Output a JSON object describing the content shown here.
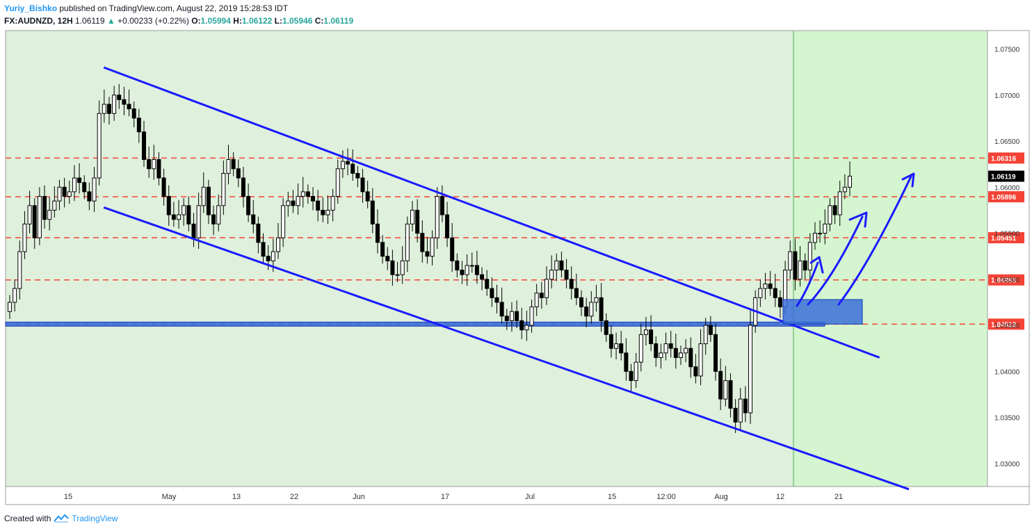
{
  "header": {
    "author": "Yuriy_Bishko",
    "published_text": "published on TradingView.com, August 22, 2019 15:28:53 IDT",
    "symbol": "FX:AUDNZD, 12H",
    "last": "1.06119",
    "change": "+0.00233 (+0.22%)",
    "o_label": "O:",
    "o_value": "1.05994",
    "h_label": "H:",
    "h_value": "1.06122",
    "l_label": "L:",
    "l_value": "1.05946",
    "c_label": "C:",
    "c_value": "1.06119"
  },
  "footer": {
    "created_with": "Created with",
    "brand": "TradingView"
  },
  "colors": {
    "bg_zone": "#dff0dc",
    "future_zone": "#d4f5cf",
    "channel": "#1a1aff",
    "level": "#f44336",
    "box": "#3a6fd8",
    "up": "#ffffff",
    "down": "#000000"
  },
  "chart_data": {
    "type": "candlestick",
    "ylim": [
      1.0275,
      1.077
    ],
    "y_ticks": [
      "1.07500",
      "1.07000",
      "1.06500",
      "1.06000",
      "1.05500",
      "1.05000",
      "1.04500",
      "1.04000",
      "1.03500",
      "1.03000"
    ],
    "y_tick_values": [
      1.075,
      1.07,
      1.065,
      1.06,
      1.055,
      1.05,
      1.045,
      1.04,
      1.035,
      1.03
    ],
    "x_ticks": [
      "15",
      "May",
      "13",
      "22",
      "Jun",
      "17",
      "Jul",
      "15",
      "12:00",
      "Aug",
      "12",
      "21"
    ],
    "levels": [
      {
        "label": "1.06316",
        "value": 1.06316
      },
      {
        "label": "1.05896",
        "value": 1.05896
      },
      {
        "label": "1.05451",
        "value": 1.05451
      },
      {
        "label": "1.04993",
        "value": 1.04993
      },
      {
        "label": "1.04513",
        "value": 1.04513
      }
    ],
    "last_price": {
      "label": "1.06119",
      "value": 1.06119
    },
    "channel_lines": [
      {
        "from": [
          0.1,
          1.073
        ],
        "to": [
          0.89,
          1.0415
        ]
      },
      {
        "from": [
          0.1,
          1.0578
        ],
        "to": [
          0.92,
          1.0272
        ]
      }
    ],
    "candles_close": [
      1.0475,
      1.049,
      1.053,
      1.056,
      1.058,
      1.0545,
      1.059,
      1.0565,
      1.0575,
      1.0585,
      1.06,
      1.059,
      1.0595,
      1.061,
      1.0605,
      1.0595,
      1.0585,
      1.061,
      1.068,
      1.069,
      1.068,
      1.07,
      1.0695,
      1.069,
      1.0685,
      1.0675,
      1.066,
      1.063,
      1.062,
      1.063,
      1.061,
      1.059,
      1.057,
      1.0565,
      1.057,
      1.058,
      1.056,
      1.0545,
      1.058,
      1.06,
      1.057,
      1.056,
      1.058,
      1.0615,
      1.063,
      1.062,
      1.061,
      1.059,
      1.057,
      1.056,
      1.054,
      1.0525,
      1.052,
      1.053,
      1.0545,
      1.058,
      1.0585,
      1.058,
      1.059,
      1.0595,
      1.059,
      1.0585,
      1.0575,
      1.057,
      1.0575,
      1.059,
      1.062,
      1.0628,
      1.0625,
      1.0615,
      1.061,
      1.0595,
      1.0585,
      1.056,
      1.054,
      1.0525,
      1.052,
      1.0505,
      1.0505,
      1.052,
      1.056,
      1.0575,
      1.055,
      1.053,
      1.0525,
      1.0545,
      1.059,
      1.057,
      1.0545,
      1.052,
      1.051,
      1.0505,
      1.0515,
      1.0515,
      1.0505,
      1.05,
      1.049,
      1.048,
      1.0475,
      1.046,
      1.0455,
      1.0465,
      1.0455,
      1.0445,
      1.045,
      1.047,
      1.0485,
      1.048,
      1.05,
      1.051,
      1.052,
      1.051,
      1.05,
      1.049,
      1.048,
      1.047,
      1.046,
      1.0475,
      1.048,
      1.0455,
      1.044,
      1.0425,
      1.043,
      1.042,
      1.04,
      1.039,
      1.041,
      1.044,
      1.0445,
      1.043,
      1.0415,
      1.042,
      1.043,
      1.0425,
      1.0415,
      1.042,
      1.0425,
      1.0405,
      1.0395,
      1.043,
      1.045,
      1.044,
      1.04,
      1.037,
      1.039,
      1.036,
      1.0345,
      1.037,
      1.0355,
      1.045,
      1.048,
      1.049,
      1.0495,
      1.049,
      1.048,
      1.047,
      1.051,
      1.053,
      1.05,
      1.052,
      1.051,
      1.054,
      1.055,
      1.055,
      1.056,
      1.058,
      1.057,
      1.0595,
      1.06,
      1.0612
    ]
  }
}
